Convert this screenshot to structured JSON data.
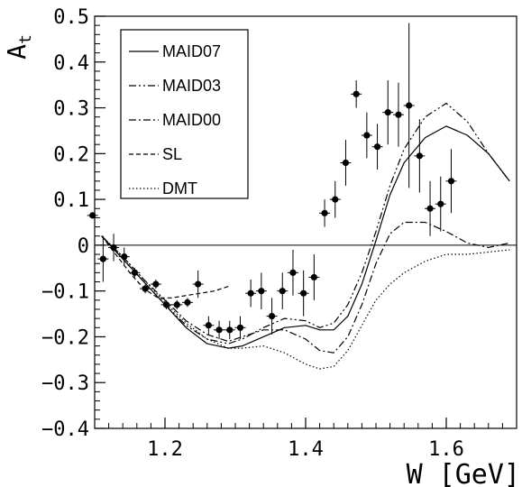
{
  "chart_data": {
    "type": "scatter",
    "title": "",
    "xlabel": "W [GeV]",
    "ylabel_main": "A",
    "ylabel_sub": "t",
    "xlim": [
      1.1,
      1.7
    ],
    "ylim": [
      -0.4,
      0.5
    ],
    "x_ticks": [
      1.2,
      1.4,
      1.6
    ],
    "x_tick_labels": [
      "1.2",
      "1.4",
      "1.6"
    ],
    "y_ticks": [
      -0.4,
      -0.3,
      -0.2,
      -0.1,
      0,
      0.1,
      0.2,
      0.3,
      0.4,
      0.5
    ],
    "y_tick_labels": [
      "−0.4",
      "−0.3",
      "−0.2",
      "−0.1",
      "0",
      "0.1",
      "0.2",
      "0.3",
      "0.4",
      "0.5"
    ],
    "grid": false,
    "zero_line": true,
    "legend_position": "top-left",
    "data_points": [
      {
        "x": 1.097,
        "y": 0.065,
        "err": 0.0
      },
      {
        "x": 1.112,
        "y": -0.03,
        "err": 0.05
      },
      {
        "x": 1.127,
        "y": -0.005,
        "err": 0.03
      },
      {
        "x": 1.142,
        "y": -0.025,
        "err": 0.02
      },
      {
        "x": 1.157,
        "y": -0.06,
        "err": 0.01
      },
      {
        "x": 1.172,
        "y": -0.095,
        "err": 0.01
      },
      {
        "x": 1.187,
        "y": -0.085,
        "err": 0.01
      },
      {
        "x": 1.202,
        "y": -0.13,
        "err": 0.01
      },
      {
        "x": 1.217,
        "y": -0.13,
        "err": 0.01
      },
      {
        "x": 1.232,
        "y": -0.125,
        "err": 0.01
      },
      {
        "x": 1.247,
        "y": -0.085,
        "err": 0.03
      },
      {
        "x": 1.262,
        "y": -0.175,
        "err": 0.02
      },
      {
        "x": 1.277,
        "y": -0.185,
        "err": 0.02
      },
      {
        "x": 1.292,
        "y": -0.185,
        "err": 0.02
      },
      {
        "x": 1.307,
        "y": -0.18,
        "err": 0.025
      },
      {
        "x": 1.322,
        "y": -0.105,
        "err": 0.03
      },
      {
        "x": 1.337,
        "y": -0.1,
        "err": 0.04
      },
      {
        "x": 1.352,
        "y": -0.155,
        "err": 0.04
      },
      {
        "x": 1.367,
        "y": -0.1,
        "err": 0.04
      },
      {
        "x": 1.382,
        "y": -0.06,
        "err": 0.05
      },
      {
        "x": 1.397,
        "y": -0.105,
        "err": 0.05
      },
      {
        "x": 1.412,
        "y": -0.07,
        "err": 0.05
      },
      {
        "x": 1.427,
        "y": 0.07,
        "err": 0.03
      },
      {
        "x": 1.442,
        "y": 0.1,
        "err": 0.04
      },
      {
        "x": 1.457,
        "y": 0.18,
        "err": 0.05
      },
      {
        "x": 1.472,
        "y": 0.33,
        "err": 0.03
      },
      {
        "x": 1.487,
        "y": 0.24,
        "err": 0.05
      },
      {
        "x": 1.502,
        "y": 0.215,
        "err": 0.05
      },
      {
        "x": 1.517,
        "y": 0.29,
        "err": 0.07
      },
      {
        "x": 1.532,
        "y": 0.285,
        "err": 0.07
      },
      {
        "x": 1.547,
        "y": 0.305,
        "err": 0.18
      },
      {
        "x": 1.562,
        "y": 0.195,
        "err": 0.08
      },
      {
        "x": 1.577,
        "y": 0.08,
        "err": 0.06
      },
      {
        "x": 1.592,
        "y": 0.09,
        "err": 0.06
      },
      {
        "x": 1.607,
        "y": 0.14,
        "err": 0.07
      }
    ],
    "series": [
      {
        "name": "MAID07",
        "style": "solid",
        "x": [
          1.11,
          1.14,
          1.17,
          1.2,
          1.23,
          1.26,
          1.29,
          1.31,
          1.34,
          1.37,
          1.4,
          1.42,
          1.44,
          1.46,
          1.48,
          1.5,
          1.52,
          1.54,
          1.57,
          1.6,
          1.63,
          1.66,
          1.69
        ],
        "y": [
          0.02,
          -0.03,
          -0.08,
          -0.13,
          -0.18,
          -0.215,
          -0.225,
          -0.22,
          -0.2,
          -0.18,
          -0.175,
          -0.185,
          -0.185,
          -0.155,
          -0.085,
          0.01,
          0.11,
          0.18,
          0.235,
          0.26,
          0.24,
          0.2,
          0.14
        ]
      },
      {
        "name": "MAID03",
        "style": "dash-dot-dot",
        "x": [
          1.11,
          1.14,
          1.17,
          1.2,
          1.23,
          1.26,
          1.29,
          1.31,
          1.34,
          1.37,
          1.4,
          1.42,
          1.44,
          1.46,
          1.48,
          1.5,
          1.52,
          1.54,
          1.57,
          1.6,
          1.63,
          1.66,
          1.69
        ],
        "y": [
          0.02,
          -0.03,
          -0.08,
          -0.13,
          -0.175,
          -0.205,
          -0.215,
          -0.205,
          -0.18,
          -0.16,
          -0.165,
          -0.18,
          -0.17,
          -0.13,
          -0.06,
          0.03,
          0.13,
          0.21,
          0.28,
          0.31,
          0.27,
          0.2,
          0.14
        ]
      },
      {
        "name": "MAID00",
        "style": "dash-dot",
        "x": [
          1.11,
          1.14,
          1.17,
          1.2,
          1.23,
          1.26,
          1.29,
          1.31,
          1.34,
          1.37,
          1.4,
          1.42,
          1.44,
          1.46,
          1.48,
          1.5,
          1.52,
          1.54,
          1.57,
          1.6,
          1.63,
          1.66,
          1.69
        ],
        "y": [
          0.02,
          -0.025,
          -0.075,
          -0.12,
          -0.165,
          -0.195,
          -0.21,
          -0.2,
          -0.185,
          -0.185,
          -0.205,
          -0.23,
          -0.235,
          -0.2,
          -0.13,
          -0.04,
          0.025,
          0.05,
          0.05,
          0.03,
          0.005,
          -0.005,
          0.005
        ]
      },
      {
        "name": "SL",
        "style": "dashed",
        "x": [
          1.11,
          1.13,
          1.15,
          1.17,
          1.19,
          1.21,
          1.23,
          1.25,
          1.27,
          1.29
        ],
        "y": [
          0.02,
          -0.02,
          -0.06,
          -0.095,
          -0.115,
          -0.115,
          -0.11,
          -0.105,
          -0.1,
          -0.09
        ]
      },
      {
        "name": "DMT",
        "style": "dotted",
        "x": [
          1.11,
          1.14,
          1.17,
          1.2,
          1.23,
          1.26,
          1.29,
          1.31,
          1.34,
          1.37,
          1.4,
          1.42,
          1.44,
          1.46,
          1.48,
          1.5,
          1.52,
          1.54,
          1.57,
          1.6,
          1.63,
          1.66,
          1.69
        ],
        "y": [
          0.02,
          -0.025,
          -0.075,
          -0.125,
          -0.17,
          -0.205,
          -0.225,
          -0.225,
          -0.22,
          -0.235,
          -0.26,
          -0.27,
          -0.265,
          -0.23,
          -0.175,
          -0.12,
          -0.085,
          -0.06,
          -0.035,
          -0.02,
          -0.02,
          -0.015,
          -0.01
        ]
      }
    ]
  },
  "colors": {
    "line": "#000000",
    "background": "#ffffff"
  }
}
